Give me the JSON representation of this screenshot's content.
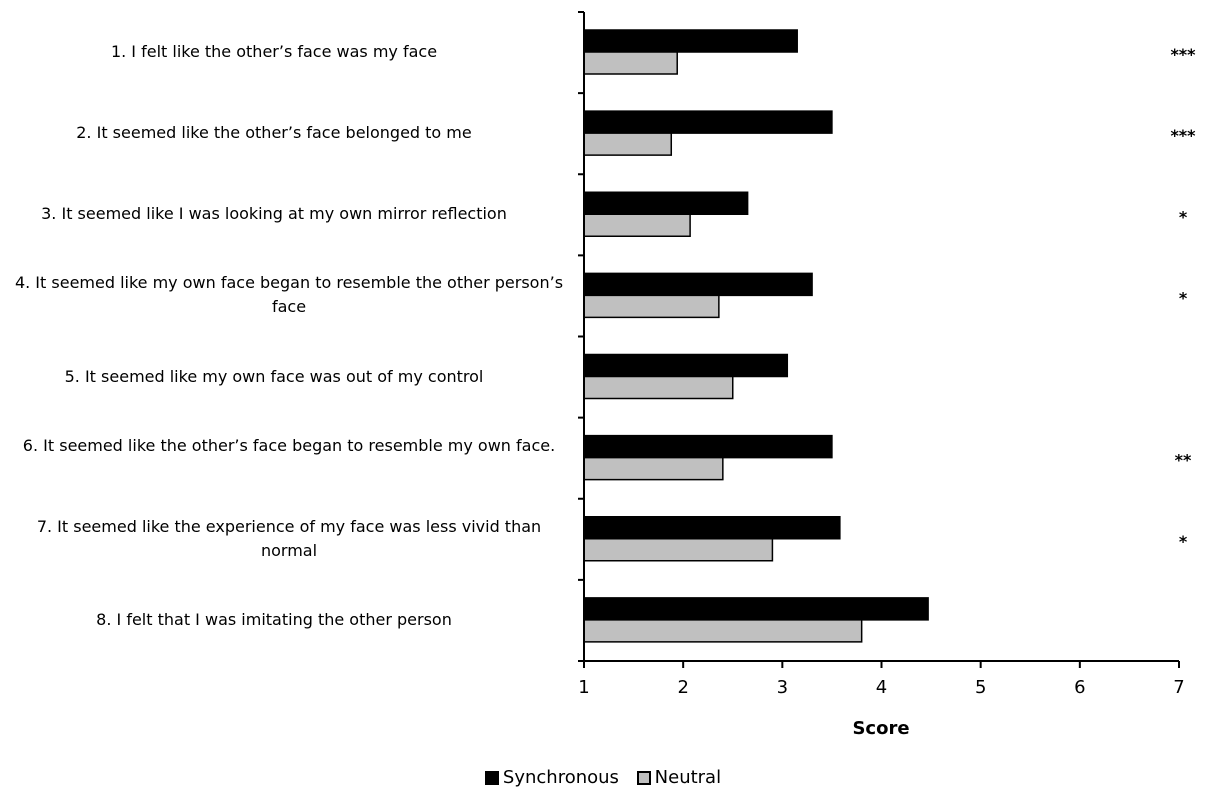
{
  "chart_data": {
    "type": "bar",
    "orientation": "horizontal",
    "xlabel": "Score",
    "xlim": [
      1,
      7
    ],
    "xticks": [
      "1",
      "2",
      "3",
      "4",
      "5",
      "6",
      "7"
    ],
    "categories": [
      "1. I felt like the other’s face was my face",
      "2. It seemed like the other’s face belonged to me",
      "3. It seemed like I was looking at my own mirror reflection",
      "4. It seemed like my own face began to resemble the other person’s face",
      "5. It seemed like my own face was out of my control",
      "6. It seemed like the other’s face began to resemble my own face.",
      "7. It seemed like the experience of my face was less vivid than normal",
      "8. I felt that I was imitating the other person"
    ],
    "series": [
      {
        "name": "Synchronous",
        "color": "#000000",
        "values": [
          3.15,
          3.5,
          2.65,
          3.3,
          3.05,
          3.5,
          3.58,
          4.47
        ]
      },
      {
        "name": "Neutral",
        "color": "#c0c0c0",
        "values": [
          1.94,
          1.88,
          2.07,
          2.36,
          2.5,
          2.4,
          2.9,
          3.8
        ]
      }
    ],
    "annotations": [
      "***",
      "***",
      "*",
      "*",
      "",
      "**",
      "*",
      ""
    ],
    "grid": false,
    "legend_position": "bottom"
  }
}
